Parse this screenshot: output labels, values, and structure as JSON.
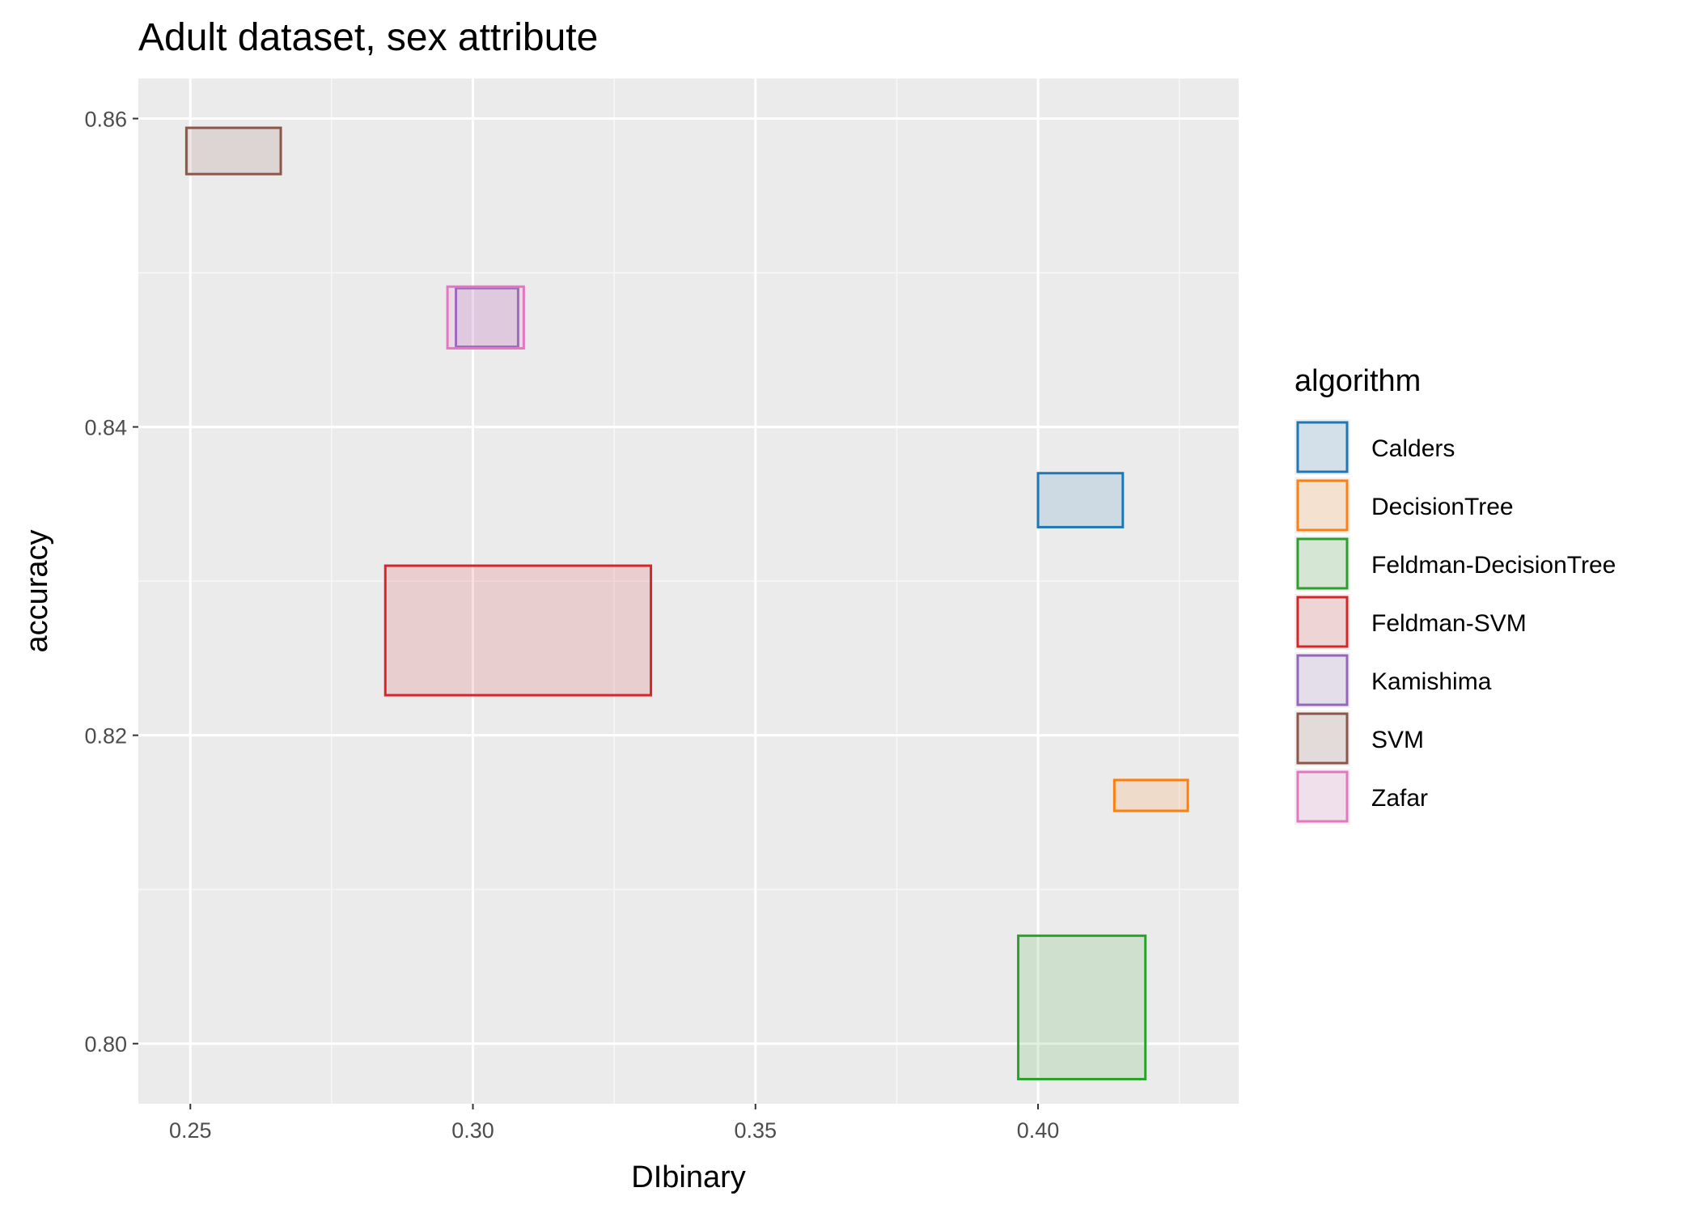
{
  "chart_data": {
    "type": "rect",
    "title": "Adult dataset, sex attribute",
    "xlabel": "DIbinary",
    "ylabel": "accuracy",
    "xlim": [
      0.2408,
      0.4355
    ],
    "ylim": [
      0.7961,
      0.8626
    ],
    "x_ticks": [
      0.25,
      0.3,
      0.35,
      0.4
    ],
    "x_tick_labels": [
      "0.25",
      "0.30",
      "0.35",
      "0.40"
    ],
    "y_ticks": [
      0.8,
      0.82,
      0.84,
      0.86
    ],
    "y_tick_labels": [
      "0.80",
      "0.82",
      "0.84",
      "0.86"
    ],
    "grid": true,
    "legend": {
      "title": "algorithm",
      "position": "right"
    },
    "series": [
      {
        "name": "Calders",
        "color": "#1f77b4",
        "xmin": 0.4,
        "xmax": 0.415,
        "ymin": 0.8335,
        "ymax": 0.837
      },
      {
        "name": "DecisionTree",
        "color": "#ff7f0e",
        "xmin": 0.4135,
        "xmax": 0.4265,
        "ymin": 0.8151,
        "ymax": 0.8171
      },
      {
        "name": "Feldman-DecisionTree",
        "color": "#2ca02c",
        "xmin": 0.3965,
        "xmax": 0.419,
        "ymin": 0.7977,
        "ymax": 0.807
      },
      {
        "name": "Feldman-SVM",
        "color": "#d62728",
        "xmin": 0.2845,
        "xmax": 0.3315,
        "ymin": 0.8226,
        "ymax": 0.831
      },
      {
        "name": "Kamishima",
        "color": "#9467bd",
        "xmin": 0.297,
        "xmax": 0.308,
        "ymin": 0.8452,
        "ymax": 0.849
      },
      {
        "name": "SVM",
        "color": "#8c564b",
        "xmin": 0.2493,
        "xmax": 0.266,
        "ymin": 0.8564,
        "ymax": 0.8594
      },
      {
        "name": "Zafar",
        "color": "#e377c2",
        "xmin": 0.2955,
        "xmax": 0.309,
        "ymin": 0.8451,
        "ymax": 0.8491
      }
    ]
  }
}
